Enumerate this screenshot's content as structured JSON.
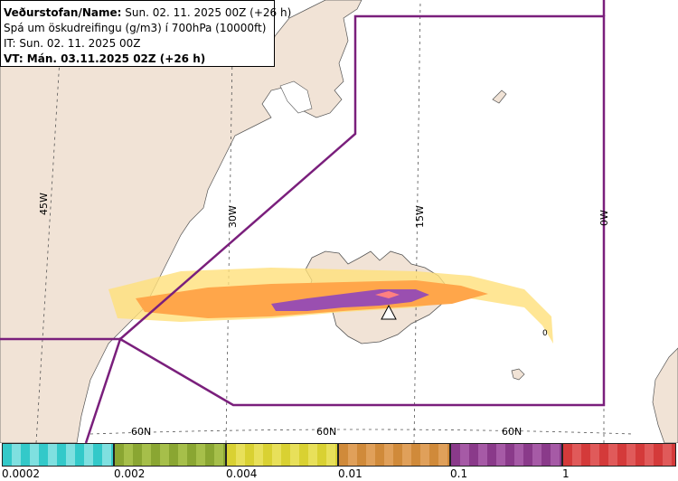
{
  "header": {
    "source_label": "Veðurstofan/Name:",
    "run_value": "Sun. 02. 11. 2025 00Z (+26 h)",
    "description": "Spá um öskudreifingu (g/m3) í 700hPa (10000ft)",
    "init_time": "IT: Sun. 02. 11. 2025 00Z",
    "valid_time": "VT: Mán. 03.11.2025 02Z (+26 h)"
  },
  "map": {
    "longitude_labels": [
      "45W",
      "30W",
      "15W",
      "0W"
    ],
    "latitude_labels": [
      "60N",
      "60N",
      "60N"
    ],
    "contour_value_label": "0",
    "colors": {
      "land": "#f1e3d6",
      "sea": "#ffffff",
      "domain_border": "#7a1f7c",
      "ash_low": "#ffc64a",
      "ash_mid": "#ffa64a",
      "ash_high": "#9a4fb0",
      "ash_peak": "#ff8080"
    },
    "volcano_icon": "volcano-triangle-icon"
  },
  "legend": {
    "labels": [
      "0.0002",
      "0.002",
      "0.004",
      "0.01",
      "0.1",
      "1"
    ],
    "colors": [
      "#33c9c9",
      "#8aa632",
      "#d9d132",
      "#d08a3a",
      "#8a3a8a",
      "#d43a3a"
    ]
  }
}
